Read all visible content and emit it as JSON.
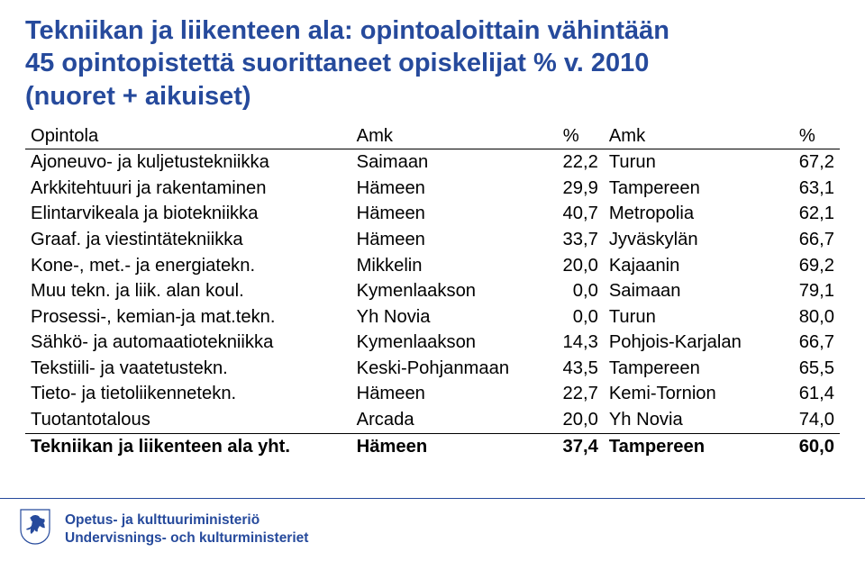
{
  "title": {
    "line1": "Tekniikan ja liikenteen ala: opintoaloittain vähintään",
    "line2": "45 opintopistettä suorittaneet opiskelijat % v. 2010",
    "line3": "(nuoret + aikuiset)",
    "color": "#264a9c"
  },
  "table": {
    "header": {
      "col1": "Opintola",
      "col2": "Amk",
      "col3": "%",
      "col4": "Amk",
      "col5": "%"
    },
    "rows": [
      {
        "a": "Ajoneuvo- ja kuljetustekniikka",
        "b": "Saimaan",
        "c": "22,2",
        "d": "Turun",
        "e": "67,2"
      },
      {
        "a": "Arkkitehtuuri ja rakentaminen",
        "b": "Hämeen",
        "c": "29,9",
        "d": "Tampereen",
        "e": "63,1"
      },
      {
        "a": "Elintarvikeala ja biotekniikka",
        "b": "Hämeen",
        "c": "40,7",
        "d": "Metropolia",
        "e": "62,1"
      },
      {
        "a": "Graaf. ja viestintätekniikka",
        "b": "Hämeen",
        "c": "33,7",
        "d": "Jyväskylän",
        "e": "66,7"
      },
      {
        "a": "Kone-, met.- ja energiatekn.",
        "b": "Mikkelin",
        "c": "20,0",
        "d": "Kajaanin",
        "e": "69,2"
      },
      {
        "a": "Muu tekn. ja liik. alan koul.",
        "b": "Kymenlaakson",
        "c": "0,0",
        "d": "Saimaan",
        "e": "79,1"
      },
      {
        "a": "Prosessi-, kemian-ja mat.tekn.",
        "b": "Yh Novia",
        "c": "0,0",
        "d": "Turun",
        "e": "80,0"
      },
      {
        "a": "Sähkö- ja automaatiotekniikka",
        "b": "Kymenlaakson",
        "c": "14,3",
        "d": "Pohjois-Karjalan",
        "e": "66,7"
      },
      {
        "a": "Tekstiili- ja vaatetustekn.",
        "b": "Keski-Pohjanmaan",
        "c": "43,5",
        "d": "Tampereen",
        "e": "65,5"
      },
      {
        "a": "Tieto- ja tietoliikennetekn.",
        "b": "Hämeen",
        "c": "22,7",
        "d": "Kemi-Tornion",
        "e": "61,4"
      },
      {
        "a": "Tuotantotalous",
        "b": "Arcada",
        "c": "20,0",
        "d": "Yh Novia",
        "e": "74,0"
      }
    ],
    "summary": {
      "a": "Tekniikan ja liikenteen ala yht.",
      "b": "Hämeen",
      "c": "37,4",
      "d": "Tampereen",
      "e": "60,0"
    },
    "text_color": "#000000",
    "border_color": "#000000",
    "fontsize": 20
  },
  "footer": {
    "line1": "Opetus- ja kulttuuriministeriö",
    "line2": "Undervisnings- och kulturministeriet",
    "border_color": "#264a9c",
    "text_color": "#264a9c",
    "emblem_color": "#264a9c"
  }
}
